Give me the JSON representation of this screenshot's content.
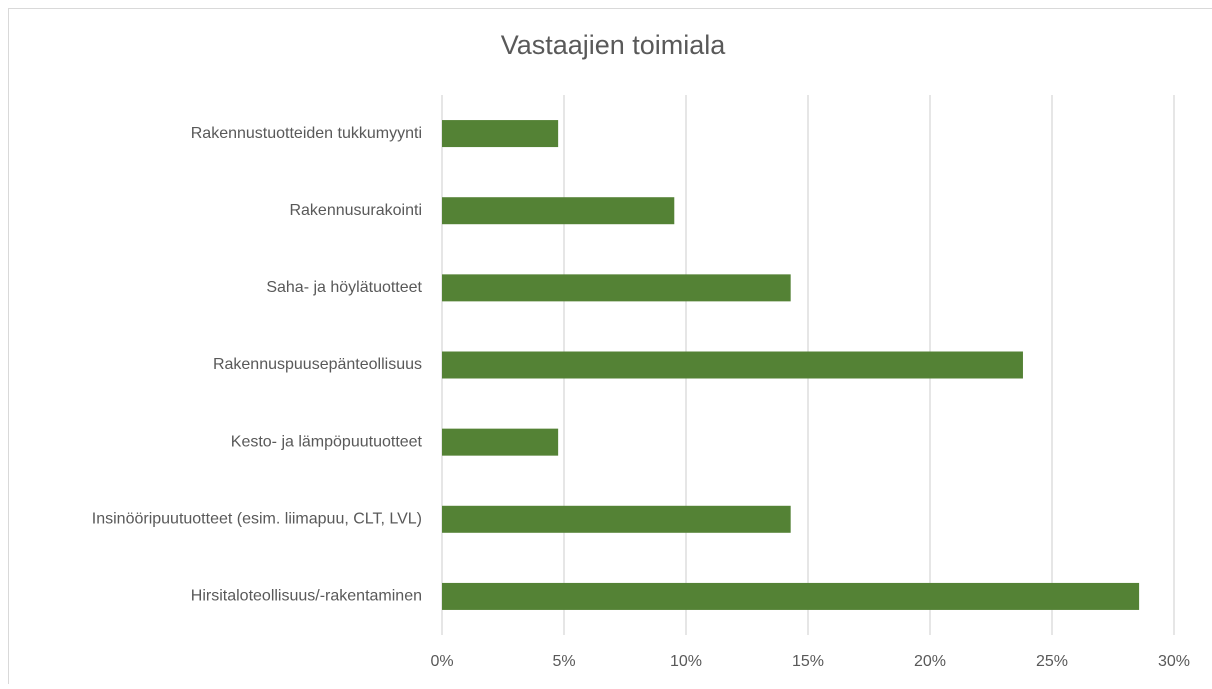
{
  "chart_data": {
    "type": "bar",
    "orientation": "horizontal",
    "title": "Vastaajien toimiala",
    "categories": [
      "Rakennustuotteiden tukkumyynti",
      "Rakennusurakointi",
      "Saha- ja höylätuotteet",
      "Rakennuspuusepänteollisuus",
      "Kesto- ja lämpöpuutuotteet",
      "Insinööripuutuotteet (esim. liimapuu, CLT, LVL)",
      "Hirsitaloteollisuus/-rakentaminen"
    ],
    "values": [
      4.76,
      9.52,
      14.29,
      23.81,
      4.76,
      14.29,
      28.57
    ],
    "color": "#548235",
    "xlim": [
      0,
      30
    ],
    "xticks": [
      {
        "value": 0,
        "label": "0%"
      },
      {
        "value": 5,
        "label": "5%"
      },
      {
        "value": 10,
        "label": "10%"
      },
      {
        "value": 15,
        "label": "15%"
      },
      {
        "value": 20,
        "label": "20%"
      },
      {
        "value": 25,
        "label": "25%"
      },
      {
        "value": 30,
        "label": "30%"
      }
    ],
    "grid": true
  }
}
